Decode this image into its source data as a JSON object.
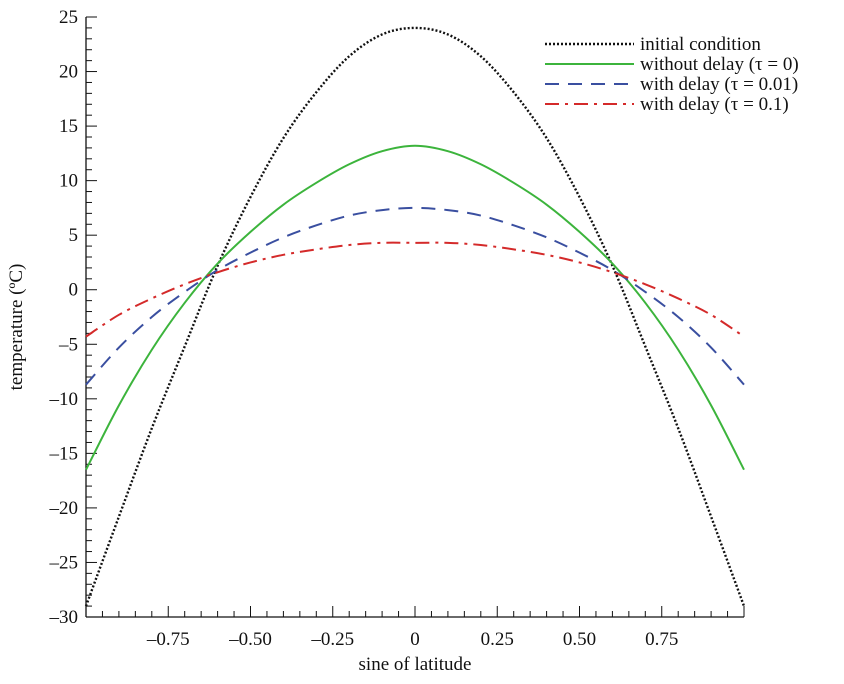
{
  "chart_data": {
    "type": "line",
    "xlabel": "sine of latitude",
    "ylabel": "temperature (ºC)",
    "xlim": [
      -1,
      1
    ],
    "ylim": [
      -30,
      25
    ],
    "x_ticks": [
      -0.75,
      -0.5,
      -0.25,
      0,
      0.25,
      0.5,
      0.75
    ],
    "x_tick_labels": [
      "–0.75",
      "–0.50",
      "–0.25",
      "0",
      "0.25",
      "0.50",
      "0.75"
    ],
    "y_ticks": [
      -30,
      -25,
      -20,
      -15,
      -10,
      -5,
      0,
      5,
      10,
      15,
      20,
      25
    ],
    "y_tick_labels": [
      "–30",
      "–25",
      "–20",
      "–15",
      "–10",
      "–5",
      "0",
      "5",
      "10",
      "15",
      "20",
      "25"
    ],
    "grid": false,
    "legend_position": "top-right",
    "x": [
      -1.0,
      -0.9,
      -0.8,
      -0.7,
      -0.6,
      -0.5,
      -0.4,
      -0.3,
      -0.2,
      -0.1,
      0.0,
      0.1,
      0.2,
      0.3,
      0.4,
      0.5,
      0.6,
      0.7,
      0.8,
      0.9,
      1.0
    ],
    "series": [
      {
        "name": "initial condition",
        "color": "#111111",
        "dash": "dotted",
        "values": [
          -29.0,
          -20.8,
          -12.7,
          -5.2,
          2.2,
          8.5,
          13.9,
          18.1,
          21.4,
          23.4,
          24.0,
          23.4,
          21.4,
          18.1,
          13.9,
          8.5,
          2.2,
          -5.2,
          -12.7,
          -20.8,
          -29.0
        ]
      },
      {
        "name": "without delay",
        "tau_label": "(τ = 0)",
        "color": "#3cb43c",
        "dash": "solid",
        "values": [
          -16.5,
          -10.6,
          -5.5,
          -1.2,
          2.4,
          5.3,
          7.8,
          9.8,
          11.5,
          12.7,
          13.2,
          12.7,
          11.5,
          9.8,
          7.8,
          5.3,
          2.4,
          -1.2,
          -5.5,
          -10.6,
          -16.5
        ]
      },
      {
        "name": "with delay",
        "tau_label": "(τ = 0.01)",
        "color": "#3a4fa0",
        "dash": "dashed",
        "values": [
          -8.7,
          -5.3,
          -2.5,
          -0.2,
          1.8,
          3.4,
          4.8,
          5.9,
          6.8,
          7.3,
          7.5,
          7.3,
          6.8,
          5.9,
          4.8,
          3.4,
          1.8,
          -0.2,
          -2.5,
          -5.3,
          -8.7
        ]
      },
      {
        "name": "with delay",
        "tau_label": "(τ = 0.1)",
        "color": "#d42a2a",
        "dash": "dashdot",
        "values": [
          -4.3,
          -2.3,
          -0.8,
          0.5,
          1.6,
          2.5,
          3.2,
          3.7,
          4.1,
          4.3,
          4.3,
          4.3,
          4.1,
          3.7,
          3.2,
          2.5,
          1.6,
          0.5,
          -0.8,
          -2.3,
          -4.3
        ]
      }
    ]
  }
}
